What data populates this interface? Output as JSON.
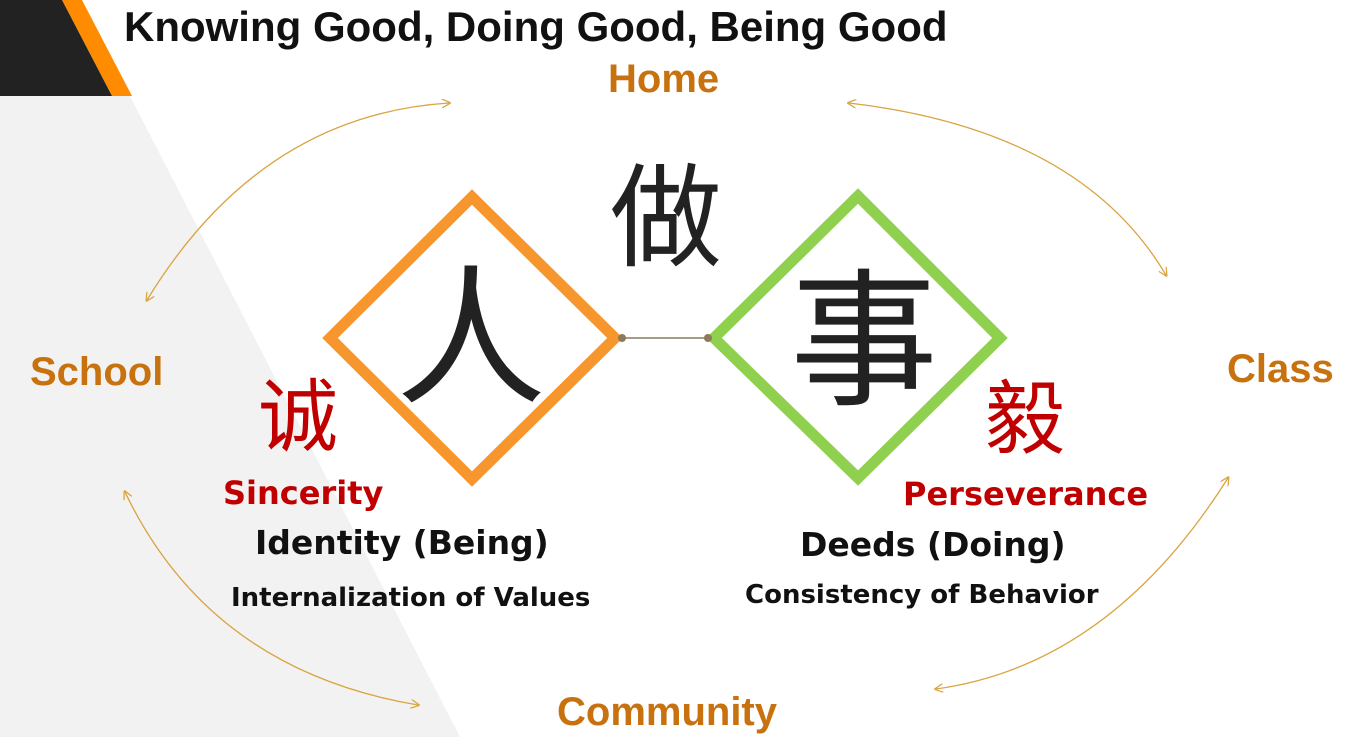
{
  "title": "Knowing Good, Doing Good, Being Good",
  "places": {
    "top": "Home",
    "left": "School",
    "right": "Class",
    "bottom": "Community"
  },
  "center_char": "做",
  "left_node": {
    "char": "人",
    "virtue_char": "诚",
    "virtue": "Sincerity",
    "concept": "Identity (Being)",
    "subtitle": "Internalization of Values",
    "color": "#f7962d"
  },
  "right_node": {
    "char": "事",
    "virtue_char": "毅",
    "virtue": "Perseverance",
    "concept": "Deeds (Doing)",
    "subtitle": "Consistency of Behavior",
    "color": "#8fd14f"
  },
  "colors": {
    "accent_orange": "#ff8c00",
    "place_text": "#c8720f",
    "virtue_red": "#c00000",
    "arrow": "#d9a441",
    "dark_corner": "#222222",
    "gray_panel": "#f2f2f2"
  }
}
